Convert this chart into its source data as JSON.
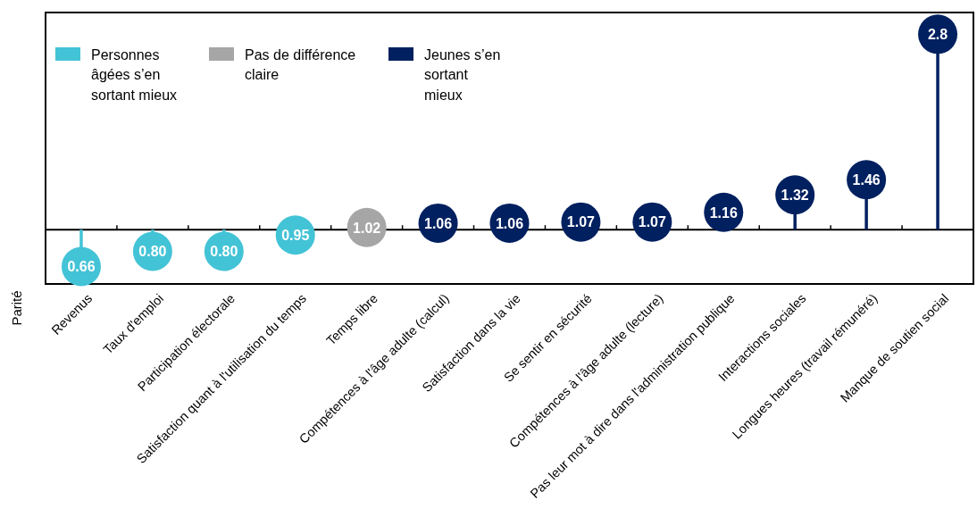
{
  "chart_data": {
    "type": "lollipop",
    "ylabel": "Parité",
    "categories": [
      "Revenus",
      "Taux d'emploi",
      "Participation électorale",
      "Satisfaction quant à l'utilisation du temps",
      "Temps libre",
      "Compétences à l'âge adulte (calcul)",
      "Satisfaction dans la vie",
      "Se sentir en sécurité",
      "Compétences à l'âge adulte (lecture)",
      "Pas leur mot à dire dans l'administration publique",
      "Interactions sociales",
      "Longues heures (travail rémunéré)",
      "Manque de soutien social"
    ],
    "series": [
      {
        "name": "Personnes âgées s’en sortant mieux",
        "color": "#43c3d6",
        "values": [
          0.66,
          0.8,
          0.8,
          0.95,
          null,
          null,
          null,
          null,
          null,
          null,
          null,
          null,
          null
        ],
        "value_labels": [
          "0.66",
          "0.80",
          "0.80",
          "0.95",
          null,
          null,
          null,
          null,
          null,
          null,
          null,
          null,
          null
        ]
      },
      {
        "name": "Pas de différence claire",
        "color": "#a6a6a6",
        "values": [
          null,
          null,
          null,
          null,
          1.02,
          null,
          null,
          null,
          null,
          null,
          null,
          null,
          null
        ],
        "value_labels": [
          null,
          null,
          null,
          null,
          "1.02",
          null,
          null,
          null,
          null,
          null,
          null,
          null,
          null
        ]
      },
      {
        "name": "Jeunes s’en sortant mieux",
        "color": "#002060",
        "values": [
          null,
          null,
          null,
          null,
          null,
          1.06,
          1.06,
          1.07,
          1.07,
          1.16,
          1.32,
          1.46,
          2.8
        ],
        "value_labels": [
          null,
          null,
          null,
          null,
          null,
          "1.06",
          "1.06",
          "1.07",
          "1.07",
          "1.16",
          "1.32",
          "1.46",
          "2.8"
        ]
      }
    ],
    "ylim": [
      0.5,
      3.0
    ],
    "tick_labels": "x",
    "ref_lines": [
      {
        "axis": "y",
        "value": 1
      }
    ],
    "legend": "top left"
  }
}
